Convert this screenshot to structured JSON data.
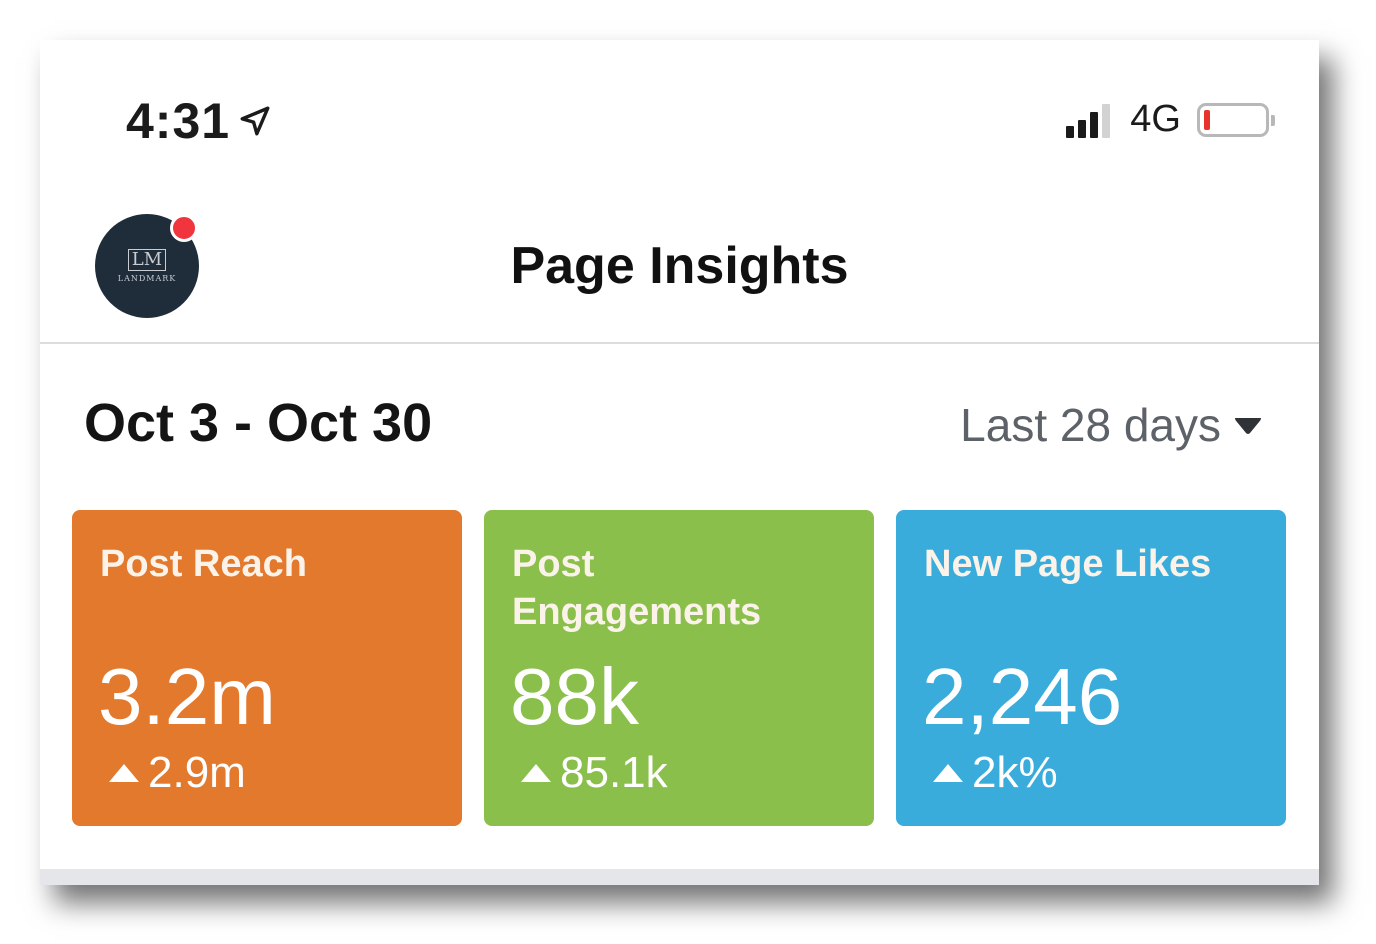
{
  "status_bar": {
    "time": "4:31",
    "network": "4G",
    "battery_level": 0.08,
    "signal_bars": 3,
    "signal_max": 4,
    "icons": {
      "location": "location-arrow-icon",
      "signal": "cellular-signal-icon",
      "battery": "battery-icon"
    }
  },
  "header": {
    "title": "Page Insights",
    "avatar": {
      "mark": "LM",
      "text": "LANDMARK"
    }
  },
  "date_row": {
    "range": "Oct 3 - Oct 30",
    "period": "Last 28 days"
  },
  "cards": [
    {
      "label": "Post Reach",
      "value": "3.2m",
      "change": "2.9m",
      "color": "#e2792d"
    },
    {
      "label": "Post Engagements",
      "value": "88k",
      "change": "85.1k",
      "color": "#8bbf4c"
    },
    {
      "label": "New Page Likes",
      "value": "2,246",
      "change": "2k%",
      "color": "#39acdb"
    }
  ],
  "colors": {
    "notification_dot": "#f0353e",
    "battery_low": "#e8322c",
    "avatar_bg": "#1f2d3b"
  }
}
